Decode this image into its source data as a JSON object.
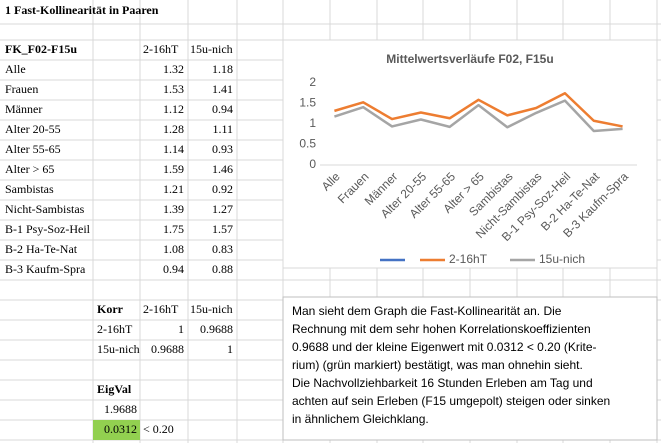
{
  "sheet_title": "1 Fast-Kollinearität in Paaren",
  "table": {
    "header": "FK_F02-F15u"
  },
  "korr": {
    "title": "Korr",
    "columns": [
      "2-16hT",
      "15u-nich"
    ],
    "rows": [
      {
        "label": "2-16hT",
        "values": [
          1,
          0.9688
        ]
      },
      {
        "label": "15u-nich",
        "values": [
          0.9688,
          1
        ]
      }
    ]
  },
  "eigval": {
    "title": "EigVal",
    "values": [
      1.9688,
      0.0312
    ],
    "criterion": "< 0.20",
    "highlight_color": "#92d050"
  },
  "textbox": {
    "lines": [
      "Man sieht dem Graph die Fast-Kollinearität an. Die",
      "Rechnung mit dem sehr hohen Korrelationskoeffizienten",
      "0.9688 und der kleine Eigenwert mit 0.0312 < 0.20 (Krite-",
      "rium) (grün markiert) bestätigt, was man ohnehin sieht.",
      "Die Nachvollziehbarkeit 16 Stunden Erleben am Tag und",
      "achten auf sein Erleben (F15 umgepolt) steigen oder sinken",
      "in ähnlichem Gleichklang."
    ]
  },
  "chart_data": {
    "type": "line",
    "title": "Mittelwertsverläufe F02, F15u",
    "categories": [
      "Alle",
      "Frauen",
      "Männer",
      "Alter 20-55",
      "Alter 55-65",
      "Alter > 65",
      "Sambistas",
      "Nicht-Sambistas",
      "B-1 Psy-Soz-Heil",
      "B-2 Ha-Te-Nat",
      "B-3 Kaufm-Spra"
    ],
    "series": [
      {
        "name": "2-16hT",
        "color": "#ed7d31",
        "values": [
          1.32,
          1.53,
          1.12,
          1.28,
          1.14,
          1.59,
          1.21,
          1.39,
          1.75,
          1.08,
          0.94
        ]
      },
      {
        "name": "15u-nich",
        "color": "#a5a5a5",
        "values": [
          1.18,
          1.41,
          0.94,
          1.11,
          0.93,
          1.46,
          0.92,
          1.27,
          1.57,
          0.83,
          0.88
        ]
      }
    ],
    "ylim": [
      0,
      2
    ],
    "yticks": [
      0,
      0.5,
      1,
      1.5,
      2
    ],
    "grid": false
  }
}
